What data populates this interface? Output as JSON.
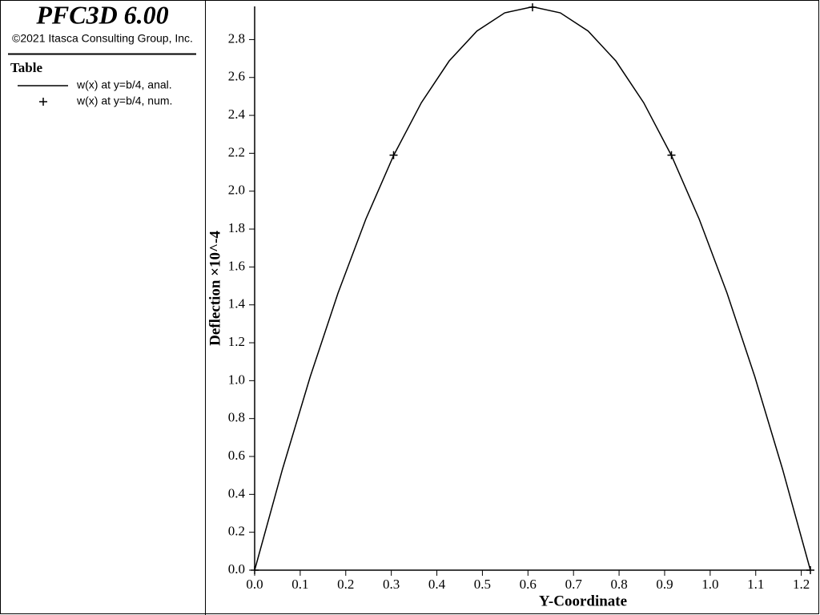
{
  "header": {
    "title": "PFC3D 6.00",
    "copyright": "©2021 Itasca Consulting Group, Inc."
  },
  "chart_data": {
    "type": "line",
    "legend_title": "Table",
    "xlabel": "Y-Coordinate",
    "ylabel": "Deflection ×10^-4",
    "xlim": [
      0,
      1.22
    ],
    "ylim": [
      0,
      2.975
    ],
    "xticks": [
      {
        "value": 0,
        "label": "0.0"
      },
      0.1,
      0.2,
      0.3,
      0.4,
      0.5,
      0.6,
      0.7,
      0.8,
      0.9,
      {
        "value": 1,
        "label": "1.0"
      },
      1.1,
      1.2
    ],
    "yticks": [
      {
        "value": 0,
        "label": "0.0"
      },
      0.2,
      0.4,
      0.6,
      0.8,
      {
        "value": 1,
        "label": "1.0"
      },
      1.2,
      1.4,
      1.6,
      1.8,
      {
        "value": 2,
        "label": "2.0"
      },
      2.2,
      2.4,
      2.6,
      2.8
    ],
    "series": [
      {
        "name": "w(x) at y=b/4, anal.",
        "color": "#000000",
        "style": "line",
        "x": [
          0,
          0.061,
          0.122,
          0.183,
          0.244,
          0.305,
          0.366,
          0.427,
          0.488,
          0.549,
          0.61,
          0.671,
          0.732,
          0.793,
          0.854,
          0.915,
          0.976,
          1.037,
          1.098,
          1.159,
          1.22
        ],
        "values": [
          0,
          0.532,
          1.021,
          1.462,
          1.852,
          2.188,
          2.467,
          2.687,
          2.845,
          2.941,
          2.973,
          2.941,
          2.845,
          2.687,
          2.467,
          2.188,
          1.852,
          1.462,
          1.021,
          0.532,
          0
        ]
      },
      {
        "name": "w(x) at y=b/4, num.",
        "color": "#000000",
        "style": "plus",
        "x": [
          0,
          0.305,
          0.61,
          0.915,
          1.22
        ],
        "values": [
          0,
          2.19,
          2.97,
          2.19,
          0
        ]
      }
    ]
  }
}
